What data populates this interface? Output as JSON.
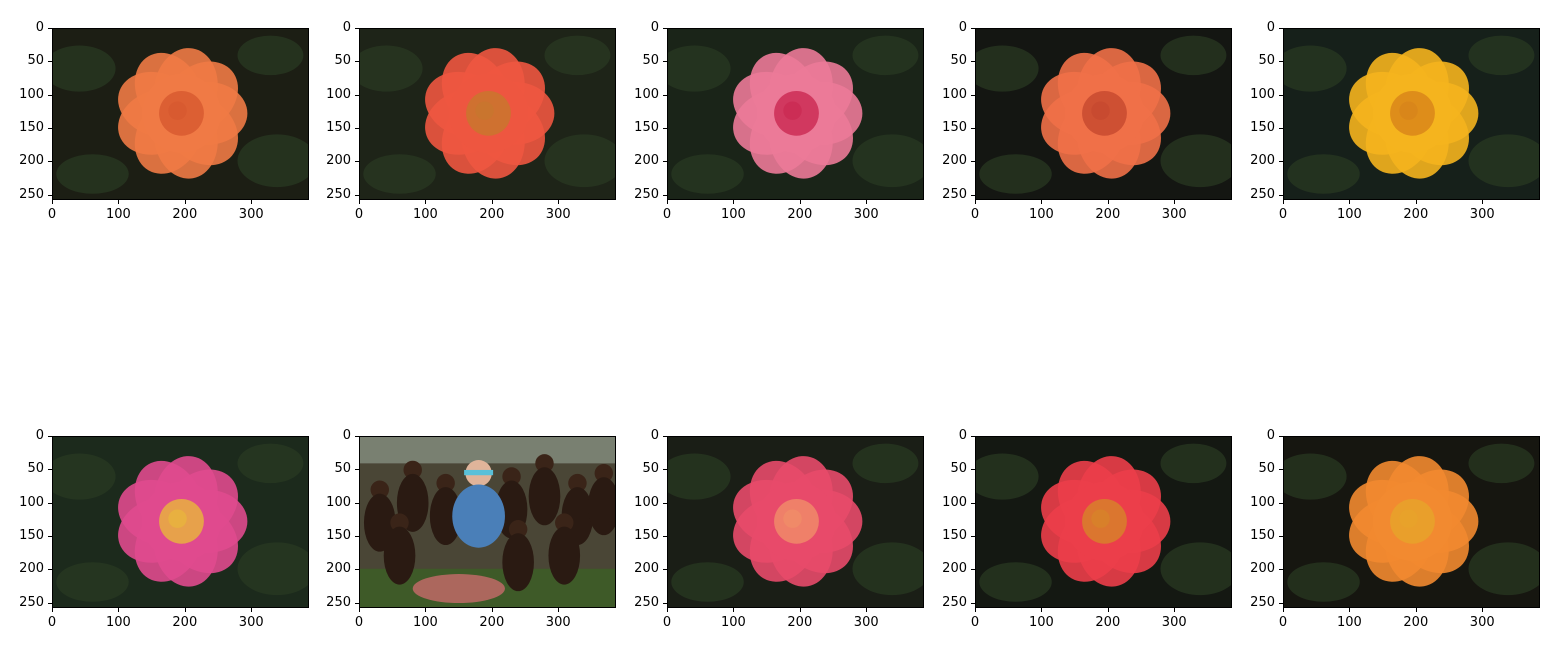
{
  "figure": {
    "x_ticks": [
      "0",
      "100",
      "200",
      "300"
    ],
    "y_ticks": [
      "0",
      "50",
      "100",
      "150",
      "200",
      "250"
    ]
  },
  "chart_data": [
    {
      "type": "image",
      "subject": "orange rose",
      "xlim": [
        0,
        387
      ],
      "ylim": [
        258,
        0
      ],
      "x_ticks": [
        0,
        100,
        200,
        300
      ],
      "y_ticks": [
        0,
        50,
        100,
        150,
        200,
        250
      ],
      "colors": {
        "bg": "#1c1e14",
        "petal": "#f07a45",
        "center": "#d85a30"
      }
    },
    {
      "type": "image",
      "subject": "coral red rose",
      "xlim": [
        0,
        387
      ],
      "ylim": [
        258,
        0
      ],
      "x_ticks": [
        0,
        100,
        200,
        300
      ],
      "y_ticks": [
        0,
        50,
        100,
        150,
        200,
        250
      ],
      "colors": {
        "bg": "#1e2418",
        "petal": "#ee5640",
        "center": "#c9752e"
      }
    },
    {
      "type": "image",
      "subject": "pink rose",
      "xlim": [
        0,
        387
      ],
      "ylim": [
        258,
        0
      ],
      "x_ticks": [
        0,
        100,
        200,
        300
      ],
      "y_ticks": [
        0,
        50,
        100,
        150,
        200,
        250
      ],
      "colors": {
        "bg": "#1a2418",
        "petal": "#ec7a98",
        "center": "#cc2d55"
      }
    },
    {
      "type": "image",
      "subject": "orange rose",
      "xlim": [
        0,
        387
      ],
      "ylim": [
        258,
        0
      ],
      "x_ticks": [
        0,
        100,
        200,
        300
      ],
      "y_ticks": [
        0,
        50,
        100,
        150,
        200,
        250
      ],
      "colors": {
        "bg": "#141612",
        "petal": "#f07048",
        "center": "#c84a30"
      }
    },
    {
      "type": "image",
      "subject": "yellow rose",
      "xlim": [
        0,
        387
      ],
      "ylim": [
        258,
        0
      ],
      "x_ticks": [
        0,
        100,
        200,
        300
      ],
      "y_ticks": [
        0,
        50,
        100,
        150,
        200,
        250
      ],
      "colors": {
        "bg": "#16201a",
        "petal": "#f5b41e",
        "center": "#d9861a"
      }
    },
    {
      "type": "image",
      "subject": "magenta single rose",
      "xlim": [
        0,
        387
      ],
      "ylim": [
        258,
        0
      ],
      "x_ticks": [
        0,
        100,
        200,
        300
      ],
      "y_ticks": [
        0,
        50,
        100,
        150,
        200,
        250
      ],
      "colors": {
        "bg": "#1c2a1c",
        "petal": "#e04a8e",
        "center": "#e8b040"
      }
    },
    {
      "type": "image",
      "subject": "people gathered outdoors",
      "xlim": [
        0,
        387
      ],
      "ylim": [
        258,
        0
      ],
      "x_ticks": [
        0,
        100,
        200,
        300
      ],
      "y_ticks": [
        0,
        50,
        100,
        150,
        200,
        250
      ],
      "colors": {
        "bg": "#3a3a2a",
        "petal": "#4a7fb8",
        "center": "#c98a6a"
      }
    },
    {
      "type": "image",
      "subject": "pink orange rose",
      "xlim": [
        0,
        387
      ],
      "ylim": [
        258,
        0
      ],
      "x_ticks": [
        0,
        100,
        200,
        300
      ],
      "y_ticks": [
        0,
        50,
        100,
        150,
        200,
        250
      ],
      "colors": {
        "bg": "#1a1e16",
        "petal": "#e84a6a",
        "center": "#f08a68"
      }
    },
    {
      "type": "image",
      "subject": "red rose",
      "xlim": [
        0,
        387
      ],
      "ylim": [
        258,
        0
      ],
      "x_ticks": [
        0,
        100,
        200,
        300
      ],
      "y_ticks": [
        0,
        50,
        100,
        150,
        200,
        250
      ],
      "colors": {
        "bg": "#141812",
        "petal": "#ec3e4a",
        "center": "#d8802a"
      }
    },
    {
      "type": "image",
      "subject": "orange yellow rose",
      "xlim": [
        0,
        387
      ],
      "ylim": [
        258,
        0
      ],
      "x_ticks": [
        0,
        100,
        200,
        300
      ],
      "y_ticks": [
        0,
        50,
        100,
        150,
        200,
        250
      ],
      "colors": {
        "bg": "#161610",
        "petal": "#f28a30",
        "center": "#e8a22a"
      }
    }
  ]
}
